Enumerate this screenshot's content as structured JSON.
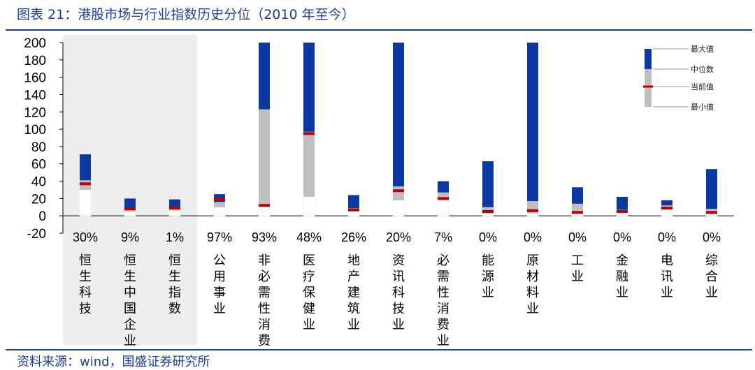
{
  "title": "图表 21：港股市场与行业指数历史分位（2010 年至今）",
  "source": "资料来源：wind，国盛证券研究所",
  "chart_data": {
    "type": "bar",
    "subtype": "floating-range-with-markers",
    "ylim": [
      -20,
      200
    ],
    "yticks": [
      -20,
      0,
      20,
      40,
      60,
      80,
      100,
      120,
      140,
      160,
      180,
      200
    ],
    "highlight_first_n": 3,
    "colors": {
      "upper": "#0a3aa1",
      "lower": "#bfbfbf",
      "current": "#c00000",
      "highlight_bg": "#eeeeee",
      "low_box": "#f2f2f2"
    },
    "categories": [
      {
        "name": "恒生科技",
        "pct": "30%",
        "min": 30,
        "median": 41,
        "max": 71,
        "current": 37
      },
      {
        "name": "恒生中国企业",
        "pct": "9%",
        "min": 5,
        "median": 9,
        "max": 20,
        "current": 8
      },
      {
        "name": "恒生指数",
        "pct": "1%",
        "min": 6,
        "median": 10,
        "max": 19,
        "current": 9
      },
      {
        "name": "公用事业",
        "pct": "97%",
        "min": 10,
        "median": 16,
        "max": 25,
        "current": 19
      },
      {
        "name": "非必需性消费",
        "pct": "93%",
        "min": 13,
        "median": 123,
        "max": 200,
        "current": 12
      },
      {
        "name": "医疗保健业",
        "pct": "48%",
        "min": 22,
        "median": 97,
        "max": 200,
        "current": 95
      },
      {
        "name": "地产建筑业",
        "pct": "26%",
        "min": 5,
        "median": 9,
        "max": 24,
        "current": 7
      },
      {
        "name": "资讯科技业",
        "pct": "20%",
        "min": 18,
        "median": 34,
        "max": 200,
        "current": 29
      },
      {
        "name": "必需性消费业",
        "pct": "7%",
        "min": 18,
        "median": 27,
        "max": 40,
        "current": 20
      },
      {
        "name": "能源业",
        "pct": "0%",
        "min": 3,
        "median": 10,
        "max": 63,
        "current": 5
      },
      {
        "name": "原材料业",
        "pct": "0%",
        "min": 3,
        "median": 17,
        "max": 200,
        "current": 6
      },
      {
        "name": "工业",
        "pct": "0%",
        "min": 3,
        "median": 14,
        "max": 33,
        "current": 4
      },
      {
        "name": "金融业",
        "pct": "0%",
        "min": 4,
        "median": 7,
        "max": 22,
        "current": 5
      },
      {
        "name": "电讯业",
        "pct": "0%",
        "min": 7,
        "median": 12,
        "max": 18,
        "current": 9
      },
      {
        "name": "综合业",
        "pct": "0%",
        "min": 2,
        "median": 8,
        "max": 54,
        "current": 4
      }
    ],
    "legend": [
      {
        "key": "max",
        "label": "最大值"
      },
      {
        "key": "median",
        "label": "中位数"
      },
      {
        "key": "current",
        "label": "当前值"
      },
      {
        "key": "min",
        "label": "最小值"
      }
    ]
  }
}
